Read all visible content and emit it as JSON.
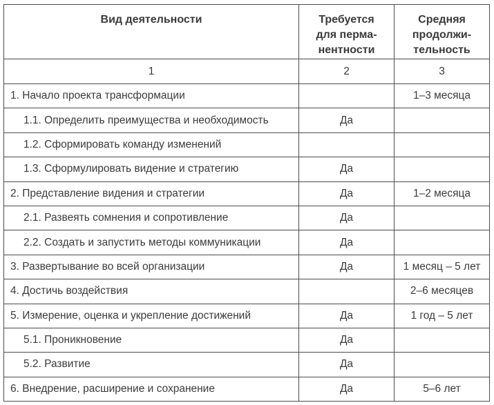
{
  "table": {
    "headers": {
      "activity": "Вид деятельности",
      "permanence": "Требуется\nдля перма-\nнентности",
      "duration": "Средняя\nпродолжи-\nтельность"
    },
    "column_numbers": [
      "1",
      "2",
      "3"
    ],
    "rows": [
      {
        "activity": "1. Начало проекта трансформации",
        "permanence": "",
        "duration": "1–3 месяца"
      },
      {
        "activity": "1.1. Определить преимущества и необходимость",
        "permanence": "Да",
        "duration": ""
      },
      {
        "activity": "1.2. Сформировать команду изменений",
        "permanence": "",
        "duration": ""
      },
      {
        "activity": "1.3. Сформулировать видение и стратегию",
        "permanence": "Да",
        "duration": ""
      },
      {
        "activity": "2. Представление видения и стратегии",
        "permanence": "Да",
        "duration": "1–2 месяца"
      },
      {
        "activity": "2.1. Развеять сомнения и сопротивление",
        "permanence": "Да",
        "duration": ""
      },
      {
        "activity": "2.2. Создать и запустить методы коммуникации",
        "permanence": "Да",
        "duration": ""
      },
      {
        "activity": "3. Развертывание во всей организации",
        "permanence": "Да",
        "duration": "1 месяц – 5 лет"
      },
      {
        "activity": "4. Достичь воздействия",
        "permanence": "",
        "duration": "2–6 месяцев"
      },
      {
        "activity": "5. Измерение, оценка и укрепление достижений",
        "permanence": "Да",
        "duration": "1 год – 5 лет"
      },
      {
        "activity": "5.1. Проникновение",
        "permanence": "Да",
        "duration": ""
      },
      {
        "activity": "5.2. Развитие",
        "permanence": "Да",
        "duration": ""
      },
      {
        "activity": "6. Внедрение, расширение и сохранение",
        "permanence": "Да",
        "duration": "5–6 лет"
      }
    ],
    "colors": {
      "border": "#4b4b4b",
      "text": "#3a3a3a",
      "background": "#ffffff"
    }
  }
}
